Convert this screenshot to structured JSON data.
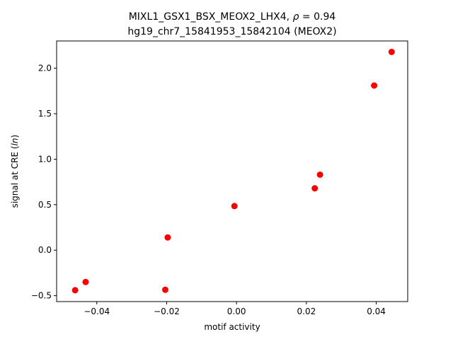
{
  "chart_data": {
    "type": "scatter",
    "title_line1_prefix": "MIXL1_GSX1_BSX_MEOX2_LHX4, ",
    "title_line1_rho": "ρ",
    "title_line1_suffix": " = 0.94",
    "title_line2": "hg19_chr7_15841953_15842104 (MEOX2)",
    "xlabel": "motif activity",
    "ylabel_prefix": "signal at CRE (",
    "ylabel_italic": "ln",
    "ylabel_suffix": ")",
    "xlim": [
      -0.0515,
      0.049
    ],
    "ylim": [
      -0.565,
      2.3
    ],
    "xticks": [
      -0.04,
      -0.02,
      0.0,
      0.02,
      0.04
    ],
    "xtick_labels": [
      "−0.04",
      "−0.02",
      "0.00",
      "0.02",
      "0.04"
    ],
    "yticks": [
      -0.5,
      0.0,
      0.5,
      1.0,
      1.5,
      2.0
    ],
    "ytick_labels": [
      "−0.5",
      "0.0",
      "0.5",
      "1.0",
      "1.5",
      "2.0"
    ],
    "marker_color": "#ff0000",
    "points": [
      {
        "x": -0.0462,
        "y": -0.44
      },
      {
        "x": -0.0432,
        "y": -0.35
      },
      {
        "x": -0.0204,
        "y": -0.435
      },
      {
        "x": -0.0197,
        "y": 0.14
      },
      {
        "x": -0.0006,
        "y": 0.485
      },
      {
        "x": 0.0224,
        "y": 0.68
      },
      {
        "x": 0.0239,
        "y": 0.83
      },
      {
        "x": 0.0394,
        "y": 1.81
      },
      {
        "x": 0.0444,
        "y": 2.18
      }
    ]
  }
}
